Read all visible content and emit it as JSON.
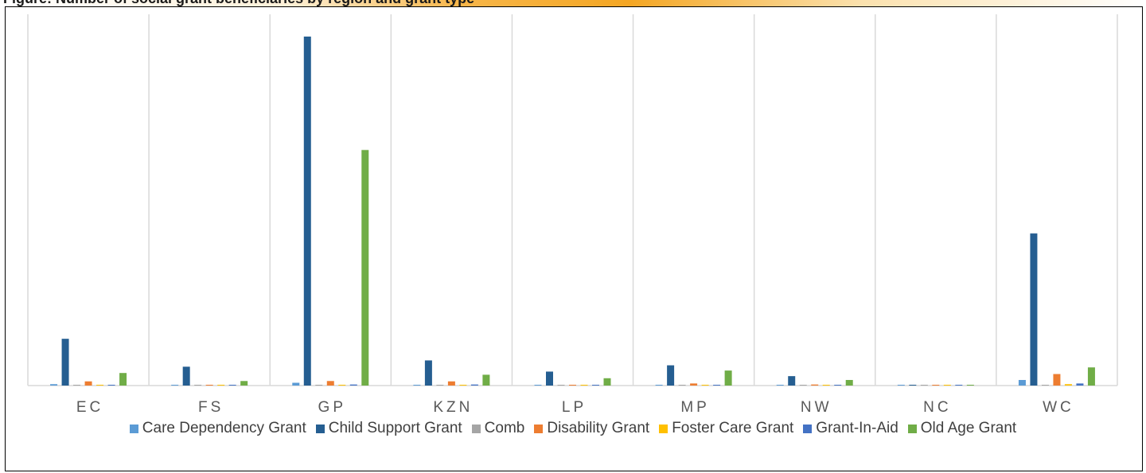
{
  "header": {
    "title": "Figure: Number of social grant beneficiaries by region and grant type"
  },
  "chart_data": {
    "type": "bar",
    "title": "",
    "xlabel": "",
    "ylabel": "",
    "categories": [
      "EC",
      "FS",
      "GP",
      "KZN",
      "LP",
      "MP",
      "NW",
      "NC",
      "WC"
    ],
    "ylim": [
      0,
      100
    ],
    "grid": "vertical category separators",
    "legend_position": "bottom",
    "series": [
      {
        "name": "Care Dependency Grant",
        "color": "#5b9bd5",
        "values": [
          0.4,
          0.1,
          0.8,
          0.2,
          0.1,
          0.1,
          0.1,
          0.1,
          1.6
        ]
      },
      {
        "name": "Child Support Grant",
        "color": "#255e91",
        "values": [
          13.4,
          5.4,
          100,
          7.2,
          4.0,
          5.8,
          2.7,
          0.2,
          43.6
        ]
      },
      {
        "name": "Comb",
        "color": "#a5a5a5",
        "values": [
          0.1,
          0.1,
          0.1,
          0.1,
          0.1,
          0.1,
          0.1,
          0.1,
          0.1
        ]
      },
      {
        "name": "Disability Grant",
        "color": "#ed7d31",
        "values": [
          1.2,
          0.2,
          1.3,
          1.2,
          0.2,
          0.6,
          0.3,
          0.1,
          3.3
        ]
      },
      {
        "name": "Foster Care Grant",
        "color": "#ffc000",
        "values": [
          0.1,
          0.1,
          0.1,
          0.1,
          0.1,
          0.1,
          0.1,
          0.1,
          0.4
        ]
      },
      {
        "name": "Grant-In-Aid",
        "color": "#4472c4",
        "values": [
          0.2,
          0.1,
          0.3,
          0.3,
          0.1,
          0.2,
          0.1,
          0.1,
          0.6
        ]
      },
      {
        "name": "Old Age Grant",
        "color": "#70ad47",
        "values": [
          3.6,
          1.3,
          67.5,
          3.1,
          2.1,
          4.3,
          1.6,
          0.1,
          5.2
        ]
      }
    ]
  }
}
